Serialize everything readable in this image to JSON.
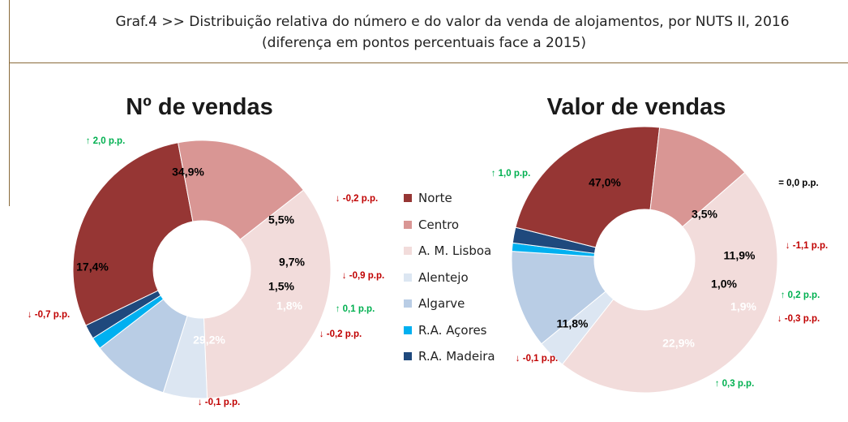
{
  "header": {
    "title_line1": "Graf.4  >>  Distribuição relativa do número e do valor da venda de alojamentos, por NUTS II, 2016",
    "title_line2": "(diferença em pontos percentuais face a 2015)"
  },
  "colors": {
    "Norte": "#963634",
    "Centro": "#d99694",
    "A. M. Lisboa": "#f2dcdb",
    "Alentejo": "#dce6f2",
    "Algarve": "#b9cde5",
    "R.A. Açores": "#00b0f0",
    "R.A. Madeira": "#1f497d",
    "up": "#00b050",
    "down": "#c00000"
  },
  "chart_data": [
    {
      "type": "pie",
      "title": "Nº de vendas",
      "categories": [
        "A. M. Lisboa",
        "Alentejo",
        "Algarve",
        "R.A. Açores",
        "R.A. Madeira",
        "Norte",
        "Centro"
      ],
      "values": [
        34.9,
        5.5,
        9.7,
        1.5,
        1.8,
        29.2,
        17.4
      ],
      "value_labels": [
        "34,9%",
        "5,5%",
        "9,7%",
        "1,5%",
        "1,8%",
        "29,2%",
        "17,4%"
      ],
      "changes": [
        {
          "category": "A. M. Lisboa",
          "label": "↑ 2,0 p.p.",
          "dir": "up"
        },
        {
          "category": "Alentejo",
          "label": "↓ -0,2 p.p.",
          "dir": "down"
        },
        {
          "category": "Algarve",
          "label": "↓ -0,9 p.p.",
          "dir": "down"
        },
        {
          "category": "R.A. Açores",
          "label": "↑ 0,1 p.p.",
          "dir": "up"
        },
        {
          "category": "R.A. Madeira",
          "label": "↓ -0,2 p.p.",
          "dir": "down"
        },
        {
          "category": "Norte",
          "label": "↓ -0,1 p.p.",
          "dir": "down"
        },
        {
          "category": "Centro",
          "label": "↓ -0,7 p.p.",
          "dir": "down"
        }
      ]
    },
    {
      "type": "pie",
      "title": "Valor de vendas",
      "categories": [
        "A. M. Lisboa",
        "Alentejo",
        "Algarve",
        "R.A. Açores",
        "R.A. Madeira",
        "Norte",
        "Centro"
      ],
      "values": [
        47.0,
        3.5,
        11.9,
        1.0,
        1.9,
        22.9,
        11.8
      ],
      "value_labels": [
        "47,0%",
        "3,5%",
        "11,9%",
        "1,0%",
        "1,9%",
        "22,9%",
        "11,8%"
      ],
      "changes": [
        {
          "category": "A. M. Lisboa",
          "label": "↑ 1,0 p.p.",
          "dir": "up"
        },
        {
          "category": "Alentejo",
          "label": "= 0,0 p.p.",
          "dir": "same"
        },
        {
          "category": "Algarve",
          "label": "↓ -1,1 p.p.",
          "dir": "down"
        },
        {
          "category": "R.A. Açores",
          "label": "↑ 0,2 p.p.",
          "dir": "up"
        },
        {
          "category": "R.A. Madeira",
          "label": "↓ -0,3 p.p.",
          "dir": "down"
        },
        {
          "category": "Norte",
          "label": "↑ 0,3 p.p.",
          "dir": "up"
        },
        {
          "category": "Centro",
          "label": "↓ -0,1 p.p.",
          "dir": "down"
        }
      ]
    }
  ],
  "legend": {
    "items": [
      "Norte",
      "Centro",
      "A. M. Lisboa",
      "Alentejo",
      "Algarve",
      "R.A. Açores",
      "R.A. Madeira"
    ]
  }
}
